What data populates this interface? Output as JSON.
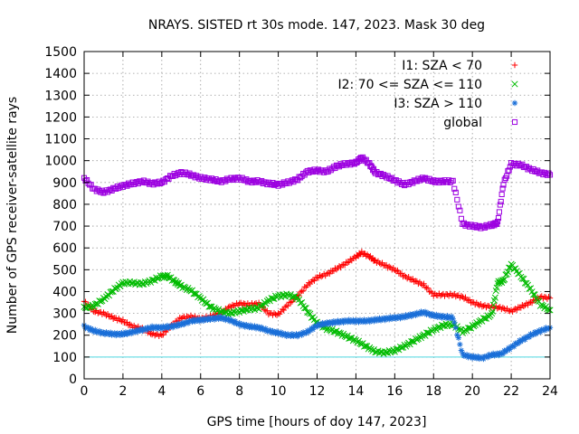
{
  "chart_data": {
    "type": "scatter",
    "title": "NRAYS. SISTED rt 30s mode. 147, 2023. Mask 30 deg",
    "xlabel": "GPS time [hours of doy 147, 2023]",
    "ylabel": "Number of GPS receiver-satellite rays",
    "xlim": [
      0,
      24
    ],
    "ylim": [
      0,
      1500
    ],
    "xticks": [
      "0",
      "2",
      "4",
      "6",
      "8",
      "10",
      "12",
      "14",
      "16",
      "18",
      "20",
      "22",
      "24"
    ],
    "yticks": [
      "0",
      "100",
      "200",
      "300",
      "400",
      "500",
      "600",
      "700",
      "800",
      "900",
      "1000",
      "1100",
      "1200",
      "1300",
      "1400",
      "1500"
    ],
    "reference_line": {
      "y": 100,
      "color": "#4fd8e0"
    },
    "legend_position": "top-right",
    "series": [
      {
        "name": "I1: SZA < 70",
        "marker": "plus",
        "color": "#ff0000",
        "points": [
          [
            0,
            355
          ],
          [
            0.5,
            310
          ],
          [
            1,
            300
          ],
          [
            1.5,
            280
          ],
          [
            2,
            265
          ],
          [
            2.5,
            240
          ],
          [
            3,
            230
          ],
          [
            3.5,
            205
          ],
          [
            4,
            200
          ],
          [
            4.5,
            245
          ],
          [
            5,
            280
          ],
          [
            5.5,
            285
          ],
          [
            6,
            275
          ],
          [
            6.5,
            285
          ],
          [
            7,
            300
          ],
          [
            7.5,
            330
          ],
          [
            8,
            345
          ],
          [
            8.5,
            340
          ],
          [
            9,
            345
          ],
          [
            9.5,
            300
          ],
          [
            10,
            295
          ],
          [
            10.5,
            340
          ],
          [
            11,
            380
          ],
          [
            11.5,
            430
          ],
          [
            12,
            465
          ],
          [
            12.5,
            480
          ],
          [
            13,
            505
          ],
          [
            13.5,
            530
          ],
          [
            14,
            560
          ],
          [
            14.3,
            578
          ],
          [
            14.7,
            560
          ],
          [
            15,
            540
          ],
          [
            15.5,
            520
          ],
          [
            16,
            500
          ],
          [
            16.5,
            470
          ],
          [
            17,
            450
          ],
          [
            17.5,
            430
          ],
          [
            18,
            385
          ],
          [
            18.5,
            385
          ],
          [
            19,
            385
          ],
          [
            19.5,
            375
          ],
          [
            20,
            350
          ],
          [
            20.5,
            335
          ],
          [
            21,
            330
          ],
          [
            21.5,
            325
          ],
          [
            22,
            310
          ],
          [
            22.5,
            330
          ],
          [
            23,
            350
          ],
          [
            23.5,
            375
          ],
          [
            24,
            370
          ]
        ]
      },
      {
        "name": "I2: 70 <= SZA <= 110",
        "marker": "cross",
        "color": "#00bb00",
        "points": [
          [
            0,
            325
          ],
          [
            0.5,
            335
          ],
          [
            1,
            365
          ],
          [
            1.5,
            405
          ],
          [
            2,
            440
          ],
          [
            2.5,
            440
          ],
          [
            3,
            435
          ],
          [
            3.5,
            450
          ],
          [
            4,
            470
          ],
          [
            4.3,
            470
          ],
          [
            4.7,
            445
          ],
          [
            5,
            425
          ],
          [
            5.5,
            405
          ],
          [
            6,
            370
          ],
          [
            6.5,
            330
          ],
          [
            7,
            310
          ],
          [
            7.5,
            300
          ],
          [
            8,
            310
          ],
          [
            8.5,
            320
          ],
          [
            9,
            325
          ],
          [
            9.5,
            360
          ],
          [
            10,
            380
          ],
          [
            10.5,
            385
          ],
          [
            11,
            370
          ],
          [
            11.5,
            310
          ],
          [
            12,
            255
          ],
          [
            12.5,
            230
          ],
          [
            13,
            215
          ],
          [
            13.5,
            195
          ],
          [
            14,
            175
          ],
          [
            14.5,
            150
          ],
          [
            15,
            125
          ],
          [
            15.5,
            120
          ],
          [
            16,
            130
          ],
          [
            16.5,
            150
          ],
          [
            17,
            175
          ],
          [
            17.5,
            200
          ],
          [
            18,
            225
          ],
          [
            18.5,
            245
          ],
          [
            19,
            250
          ],
          [
            19.5,
            215
          ],
          [
            20,
            240
          ],
          [
            20.5,
            270
          ],
          [
            21,
            295
          ],
          [
            21.3,
            440
          ],
          [
            21.6,
            450
          ],
          [
            22,
            525
          ],
          [
            22.5,
            470
          ],
          [
            23,
            410
          ],
          [
            23.5,
            340
          ],
          [
            24,
            315
          ]
        ]
      },
      {
        "name": "I3: SZA > 110",
        "marker": "star",
        "color": "#1a6fd8",
        "points": [
          [
            0,
            240
          ],
          [
            0.5,
            220
          ],
          [
            1,
            210
          ],
          [
            1.5,
            205
          ],
          [
            2,
            205
          ],
          [
            2.5,
            215
          ],
          [
            3,
            225
          ],
          [
            3.5,
            235
          ],
          [
            4,
            235
          ],
          [
            4.5,
            240
          ],
          [
            5,
            250
          ],
          [
            5.5,
            265
          ],
          [
            6,
            270
          ],
          [
            6.5,
            275
          ],
          [
            7,
            280
          ],
          [
            7.5,
            270
          ],
          [
            8,
            250
          ],
          [
            8.5,
            240
          ],
          [
            9,
            235
          ],
          [
            9.5,
            220
          ],
          [
            10,
            210
          ],
          [
            10.5,
            200
          ],
          [
            11,
            200
          ],
          [
            11.5,
            215
          ],
          [
            12,
            245
          ],
          [
            12.5,
            255
          ],
          [
            13,
            260
          ],
          [
            13.5,
            265
          ],
          [
            14,
            265
          ],
          [
            14.5,
            265
          ],
          [
            15,
            270
          ],
          [
            15.5,
            275
          ],
          [
            16,
            280
          ],
          [
            16.5,
            285
          ],
          [
            17,
            295
          ],
          [
            17.5,
            305
          ],
          [
            18,
            290
          ],
          [
            18.5,
            285
          ],
          [
            19,
            280
          ],
          [
            19.5,
            110
          ],
          [
            20,
            100
          ],
          [
            20.5,
            95
          ],
          [
            21,
            110
          ],
          [
            21.5,
            115
          ],
          [
            22,
            145
          ],
          [
            22.5,
            175
          ],
          [
            23,
            200
          ],
          [
            23.5,
            220
          ],
          [
            24,
            235
          ]
        ]
      },
      {
        "name": "global",
        "marker": "square",
        "color": "#9c00e0",
        "points": [
          [
            0,
            920
          ],
          [
            0.5,
            870
          ],
          [
            1,
            855
          ],
          [
            1.5,
            870
          ],
          [
            2,
            885
          ],
          [
            2.5,
            895
          ],
          [
            3,
            905
          ],
          [
            3.5,
            895
          ],
          [
            4,
            900
          ],
          [
            4.5,
            930
          ],
          [
            5,
            945
          ],
          [
            5.5,
            935
          ],
          [
            6,
            920
          ],
          [
            6.5,
            915
          ],
          [
            7,
            905
          ],
          [
            7.5,
            915
          ],
          [
            8,
            920
          ],
          [
            8.5,
            905
          ],
          [
            9,
            905
          ],
          [
            9.5,
            895
          ],
          [
            10,
            890
          ],
          [
            10.5,
            900
          ],
          [
            11,
            915
          ],
          [
            11.5,
            950
          ],
          [
            12,
            955
          ],
          [
            12.5,
            950
          ],
          [
            13,
            975
          ],
          [
            13.5,
            985
          ],
          [
            14,
            990
          ],
          [
            14.3,
            1015
          ],
          [
            14.7,
            985
          ],
          [
            15,
            945
          ],
          [
            15.5,
            930
          ],
          [
            16,
            910
          ],
          [
            16.5,
            890
          ],
          [
            17,
            905
          ],
          [
            17.5,
            920
          ],
          [
            18,
            905
          ],
          [
            18.5,
            905
          ],
          [
            19,
            905
          ],
          [
            19.5,
            710
          ],
          [
            20,
            700
          ],
          [
            20.5,
            695
          ],
          [
            21,
            705
          ],
          [
            21.3,
            715
          ],
          [
            21.6,
            895
          ],
          [
            22,
            985
          ],
          [
            22.5,
            980
          ],
          [
            23,
            960
          ],
          [
            23.5,
            945
          ],
          [
            24,
            935
          ]
        ]
      }
    ]
  }
}
